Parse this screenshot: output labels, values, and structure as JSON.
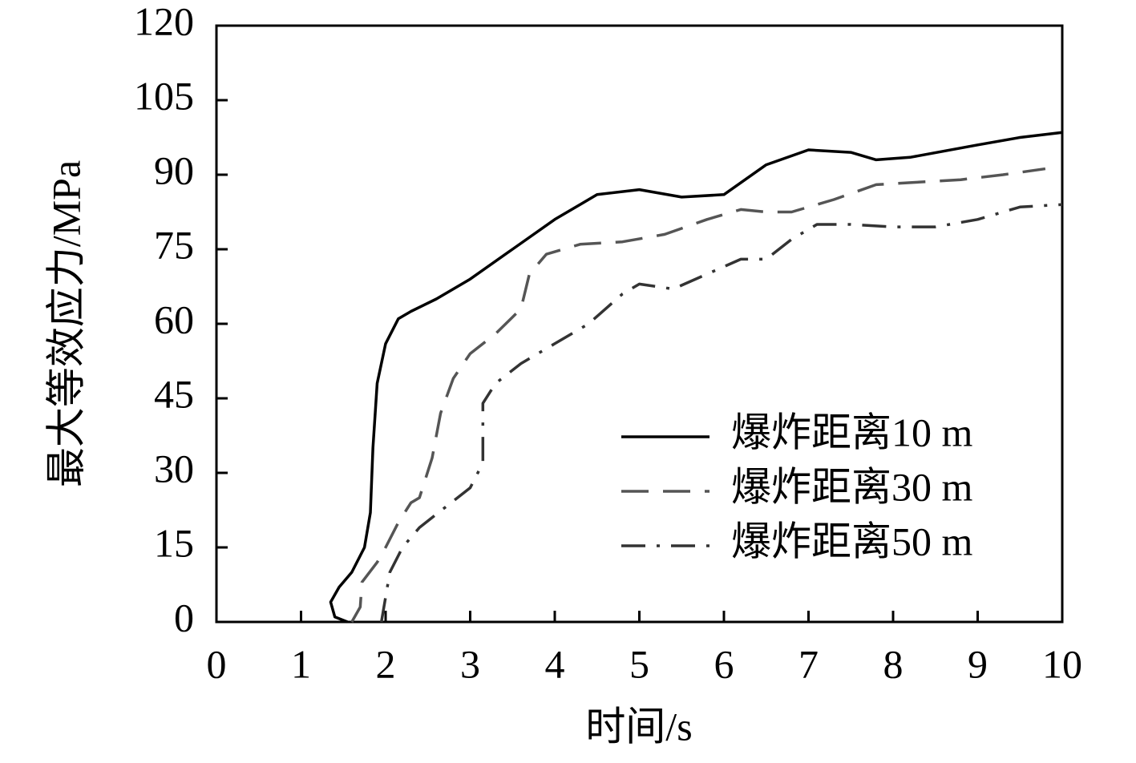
{
  "chart_data": {
    "type": "line",
    "xlabel": "时间/s",
    "ylabel": "最大等效应力/MPa",
    "xlim": [
      0,
      10
    ],
    "xticks": [
      0,
      1,
      2,
      3,
      4,
      5,
      6,
      7,
      8,
      9,
      10
    ],
    "ylim": [
      0,
      120
    ],
    "yticks": [
      0,
      15,
      30,
      45,
      60,
      75,
      90,
      105,
      120
    ],
    "legend": "lower right",
    "series": [
      {
        "name": "爆炸距离10 m",
        "color": "#000000",
        "dash": "solid",
        "x": [
          1.55,
          1.4,
          1.35,
          1.45,
          1.6,
          1.75,
          1.82,
          1.85,
          1.9,
          2.0,
          2.15,
          2.3,
          2.6,
          3.0,
          3.5,
          4.0,
          4.5,
          5.0,
          5.5,
          6.0,
          6.5,
          7.0,
          7.5,
          7.8,
          8.2,
          9.0,
          9.5,
          10
        ],
        "values": [
          0,
          1,
          4,
          7,
          10,
          15,
          22,
          35,
          48,
          56,
          61,
          62.5,
          65,
          69,
          75,
          81,
          86,
          87,
          85.5,
          86,
          92,
          95,
          94.5,
          93,
          93.5,
          96,
          97.5,
          98.5
        ]
      },
      {
        "name": "爆炸距离30 m",
        "color": "#555555",
        "dash": "dashed",
        "x": [
          1.6,
          1.7,
          1.72,
          1.9,
          2.0,
          2.15,
          2.3,
          2.4,
          2.55,
          2.65,
          2.8,
          3.0,
          3.3,
          3.6,
          3.7,
          3.9,
          4.3,
          4.8,
          5.3,
          5.8,
          6.2,
          6.5,
          6.8,
          7.3,
          7.8,
          8.3,
          8.8,
          9.3,
          9.8
        ],
        "values": [
          0,
          3,
          8,
          12,
          15,
          20,
          24,
          25,
          33,
          42,
          49,
          54,
          58,
          63,
          70,
          74,
          76,
          76.5,
          78,
          81,
          83,
          82.5,
          82.5,
          85,
          88,
          88.5,
          89,
          90,
          91.2
        ]
      },
      {
        "name": "爆炸距离50 m",
        "color": "#333333",
        "dash": "dashdot",
        "x": [
          1.95,
          2.0,
          2.05,
          2.2,
          2.4,
          2.7,
          3.0,
          3.15,
          3.15,
          3.3,
          3.6,
          4.0,
          4.4,
          4.8,
          5.0,
          5.4,
          5.8,
          6.2,
          6.5,
          6.8,
          7.1,
          7.5,
          8.0,
          8.5,
          9.0,
          9.5,
          10
        ],
        "values": [
          0,
          5,
          10,
          15,
          19,
          23,
          27,
          32,
          44,
          48,
          52,
          56,
          60,
          66,
          68,
          67,
          70,
          73,
          73,
          77,
          80,
          80,
          79.5,
          79.5,
          81,
          83.5,
          84
        ]
      }
    ]
  }
}
